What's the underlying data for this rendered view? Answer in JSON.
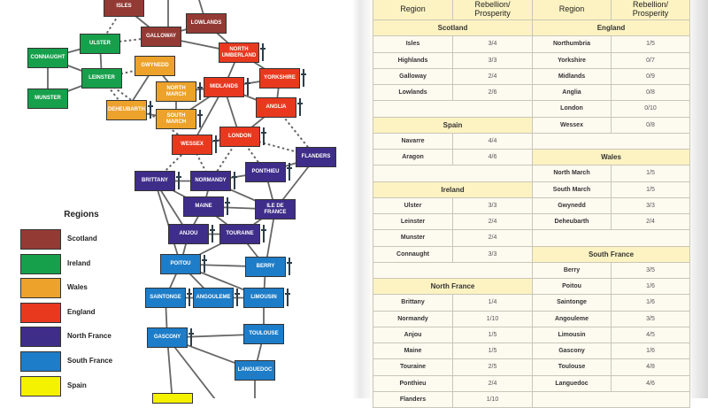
{
  "legend": {
    "title": "Regions",
    "items": [
      {
        "label": "Scotland",
        "color": "#943a35"
      },
      {
        "label": "Ireland",
        "color": "#17a04b"
      },
      {
        "label": "Wales",
        "color": "#eca22b"
      },
      {
        "label": "England",
        "color": "#e8391f"
      },
      {
        "label": "North France",
        "color": "#3f2d8a"
      },
      {
        "label": "South France",
        "color": "#1e7dc8"
      },
      {
        "label": "Spain",
        "color": "#f5f200"
      }
    ]
  },
  "map": {
    "nodes": [
      {
        "id": "isles",
        "label": "ISLES",
        "region": "Scotland"
      },
      {
        "id": "lowlands",
        "label": "LOWLANDS",
        "region": "Scotland"
      },
      {
        "id": "galloway",
        "label": "GALLOWAY",
        "region": "Scotland"
      },
      {
        "id": "ulster",
        "label": "ULSTER",
        "region": "Ireland"
      },
      {
        "id": "connaught",
        "label": "CONNAUGHT",
        "region": "Ireland"
      },
      {
        "id": "leinster",
        "label": "LEINSTER",
        "region": "Ireland"
      },
      {
        "id": "munster",
        "label": "MUNSTER",
        "region": "Ireland"
      },
      {
        "id": "gwynedd",
        "label": "GWYNEDD",
        "region": "Wales"
      },
      {
        "id": "northmarch",
        "label": "NORTH\nMARCH",
        "region": "Wales",
        "dagger": true
      },
      {
        "id": "deheubarth",
        "label": "DEHEUBARTH",
        "region": "Wales",
        "dagger": true
      },
      {
        "id": "southmarch",
        "label": "SOUTH\nMARCH",
        "region": "Wales",
        "dagger": true
      },
      {
        "id": "northumberland",
        "label": "NORTH\nUMBERLAND",
        "region": "England",
        "dagger": true
      },
      {
        "id": "yorkshire",
        "label": "YORKSHIRE",
        "region": "England",
        "dagger": true
      },
      {
        "id": "midlands",
        "label": "MIDLANDS",
        "region": "England",
        "dagger": true
      },
      {
        "id": "anglia",
        "label": "ANGLIA",
        "region": "England",
        "dagger": true
      },
      {
        "id": "london",
        "label": "LONDON",
        "region": "England",
        "dagger": true
      },
      {
        "id": "wessex",
        "label": "WESSEX",
        "region": "England",
        "dagger": true
      },
      {
        "id": "flanders",
        "label": "FLANDERS",
        "region": "North France"
      },
      {
        "id": "ponthieu",
        "label": "PONTHIEU",
        "region": "North France",
        "dagger": true
      },
      {
        "id": "brittany",
        "label": "BRITTANY",
        "region": "North France",
        "dagger": true
      },
      {
        "id": "normandy",
        "label": "NORMANDY",
        "region": "North France",
        "dagger": true
      },
      {
        "id": "maine",
        "label": "MAINE",
        "region": "North France",
        "dagger": true
      },
      {
        "id": "iledefrance",
        "label": "ILE DE\nFRANCE",
        "region": "North France"
      },
      {
        "id": "anjou",
        "label": "ANJOU",
        "region": "North France",
        "dagger": true
      },
      {
        "id": "touraine",
        "label": "TOURAINE",
        "region": "North France",
        "dagger": true
      },
      {
        "id": "poitou",
        "label": "POITOU",
        "region": "South France",
        "dagger": true
      },
      {
        "id": "berry",
        "label": "BERRY",
        "region": "South France",
        "dagger": true
      },
      {
        "id": "saintonge",
        "label": "SAINTONGE",
        "region": "South France",
        "dagger": true
      },
      {
        "id": "angouleme",
        "label": "ANGOULEME",
        "region": "South France",
        "dagger": true
      },
      {
        "id": "limousin",
        "label": "LIMOUSIN",
        "region": "South France",
        "dagger": true
      },
      {
        "id": "gascony",
        "label": "GASCONY",
        "region": "South France",
        "dagger": true
      },
      {
        "id": "toulouse",
        "label": "TOULOUSE",
        "region": "South France"
      },
      {
        "id": "languedoc",
        "label": "LANGUEDOC",
        "region": "South France"
      },
      {
        "id": "spainnode",
        "label": "",
        "region": "Spain"
      }
    ],
    "connections": [
      [
        "isles",
        "galloway"
      ],
      [
        "galloway",
        "lowlands"
      ],
      [
        "galloway",
        "northumberland"
      ],
      [
        "lowlands",
        "northumberland"
      ],
      [
        "ulster",
        "connaught"
      ],
      [
        "ulster",
        "leinster"
      ],
      [
        "connaught",
        "leinster"
      ],
      [
        "connaught",
        "munster"
      ],
      [
        "leinster",
        "munster"
      ],
      [
        "gwynedd",
        "deheubarth"
      ],
      [
        "gwynedd",
        "northmarch"
      ],
      [
        "northmarch",
        "southmarch"
      ],
      [
        "deheubarth",
        "southmarch"
      ],
      [
        "northumberland",
        "midlands"
      ],
      [
        "northumberland",
        "yorkshire"
      ],
      [
        "yorkshire",
        "midlands"
      ],
      [
        "yorkshire",
        "anglia"
      ],
      [
        "midlands",
        "northmarch"
      ],
      [
        "midlands",
        "southmarch"
      ],
      [
        "midlands",
        "wessex"
      ],
      [
        "midlands",
        "london"
      ],
      [
        "midlands",
        "anglia"
      ],
      [
        "anglia",
        "london"
      ],
      [
        "london",
        "wessex"
      ],
      [
        "brittany",
        "normandy"
      ],
      [
        "normandy",
        "ponthieu"
      ],
      [
        "ponthieu",
        "flanders"
      ],
      [
        "ponthieu",
        "iledefrance"
      ],
      [
        "flanders",
        "iledefrance"
      ],
      [
        "normandy",
        "iledefrance"
      ],
      [
        "normandy",
        "maine"
      ],
      [
        "maine",
        "iledefrance"
      ],
      [
        "brittany",
        "maine"
      ],
      [
        "brittany",
        "anjou"
      ],
      [
        "brittany",
        "poitou"
      ],
      [
        "maine",
        "anjou"
      ],
      [
        "maine",
        "touraine"
      ],
      [
        "anjou",
        "touraine"
      ],
      [
        "anjou",
        "poitou"
      ],
      [
        "touraine",
        "iledefrance"
      ],
      [
        "touraine",
        "poitou"
      ],
      [
        "touraine",
        "berry"
      ],
      [
        "iledefrance",
        "berry"
      ],
      [
        "poitou",
        "berry"
      ],
      [
        "poitou",
        "saintonge"
      ],
      [
        "poitou",
        "angouleme"
      ],
      [
        "poitou",
        "limousin"
      ],
      [
        "berry",
        "limousin"
      ],
      [
        "saintonge",
        "angouleme"
      ],
      [
        "angouleme",
        "limousin"
      ],
      [
        "saintonge",
        "gascony"
      ],
      [
        "limousin",
        "toulouse"
      ],
      [
        "toulouse",
        "gascony"
      ],
      [
        "gascony",
        "languedoc"
      ],
      [
        "toulouse",
        "languedoc"
      ],
      [
        "gascony",
        "spainnode"
      ]
    ],
    "sea_connections": [
      [
        "isles",
        "ulster"
      ],
      [
        "ulster",
        "galloway"
      ],
      [
        "leinster",
        "gwynedd"
      ],
      [
        "leinster",
        "wessex"
      ],
      [
        "leinster",
        "deheubarth"
      ],
      [
        "anglia",
        "flanders"
      ],
      [
        "london",
        "flanders"
      ],
      [
        "london",
        "ponthieu"
      ],
      [
        "wessex",
        "brittany"
      ],
      [
        "wessex",
        "normandy"
      ],
      [
        "london",
        "normandy"
      ]
    ]
  },
  "table": {
    "header": {
      "region": "Region",
      "value": "Rebellion/\nProsperity"
    },
    "left": [
      {
        "section": "Scotland"
      },
      {
        "region": "Isles",
        "value": "3/4"
      },
      {
        "region": "Highlands",
        "value": "3/3"
      },
      {
        "region": "Galloway",
        "value": "2/4"
      },
      {
        "region": "Lowlands",
        "value": "2/6"
      },
      {
        "blank": true
      },
      {
        "section": "Spain"
      },
      {
        "region": "Navarre",
        "value": "4/4"
      },
      {
        "region": "Aragon",
        "value": "4/6"
      },
      {
        "blank": true
      },
      {
        "section": "Ireland"
      },
      {
        "region": "Ulster",
        "value": "3/3"
      },
      {
        "region": "Leinster",
        "value": "2/4"
      },
      {
        "region": "Munster",
        "value": "2/4"
      },
      {
        "region": "Connaught",
        "value": "3/3"
      },
      {
        "blank": true
      },
      {
        "section": "North France"
      },
      {
        "region": "Brittany",
        "value": "1/4"
      },
      {
        "region": "Normandy",
        "value": "1/10"
      },
      {
        "region": "Anjou",
        "value": "1/5"
      },
      {
        "region": "Maine",
        "value": "1/5"
      },
      {
        "region": "Touraine",
        "value": "2/5"
      },
      {
        "region": "Ponthieu",
        "value": "2/4"
      },
      {
        "region": "Flanders",
        "value": "1/10"
      }
    ],
    "right": [
      {
        "section": "England"
      },
      {
        "region": "Northumbria",
        "value": "1/5"
      },
      {
        "region": "Yorkshire",
        "value": "0/7"
      },
      {
        "region": "Midlands",
        "value": "0/9"
      },
      {
        "region": "Anglia",
        "value": "0/8"
      },
      {
        "region": "London",
        "value": "0/10"
      },
      {
        "region": "Wessex",
        "value": "0/8"
      },
      {
        "blank": true
      },
      {
        "section": "Wales"
      },
      {
        "region": "North March",
        "value": "1/5"
      },
      {
        "region": "South March",
        "value": "1/5"
      },
      {
        "region": "Gwynedd",
        "value": "3/3"
      },
      {
        "region": "Deheubarth",
        "value": "2/4"
      },
      {
        "blank": true
      },
      {
        "section": "South France"
      },
      {
        "region": "Berry",
        "value": "3/5"
      },
      {
        "region": "Poitou",
        "value": "1/6"
      },
      {
        "region": "Saintonge",
        "value": "1/6"
      },
      {
        "region": "Angouleme",
        "value": "3/5"
      },
      {
        "region": "Limousin",
        "value": "4/5"
      },
      {
        "region": "Gascony",
        "value": "1/6"
      },
      {
        "region": "Toulouse",
        "value": "4/8"
      },
      {
        "region": "Languedoc",
        "value": "4/6"
      },
      {
        "blank": true
      }
    ]
  }
}
